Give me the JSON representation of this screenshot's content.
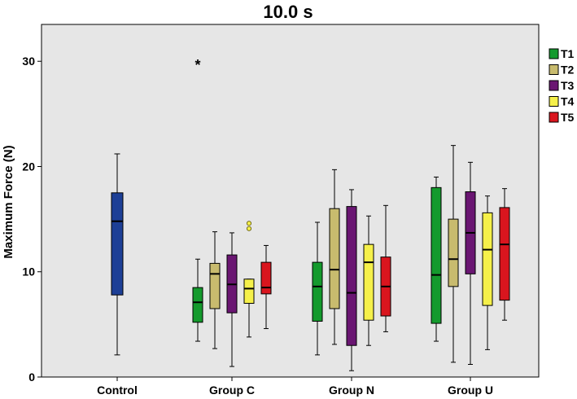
{
  "chart_data": {
    "type": "box",
    "title": "10.0 s",
    "xlabel": "",
    "ylabel": "Maximum Force (N)",
    "ylim": [
      0,
      33.5
    ],
    "yticks": [
      0,
      10,
      20,
      30
    ],
    "categories": [
      "Control",
      "Group C",
      "Group N",
      "Group U"
    ],
    "legend_position": "right",
    "series": [
      {
        "name": "Control",
        "legend": false,
        "color": "#1d3f96",
        "boxes": [
          {
            "group": "Control",
            "min": 2.1,
            "q1": 7.8,
            "median": 14.8,
            "q3": 17.5,
            "max": 21.2
          }
        ]
      },
      {
        "name": "T1",
        "legend": true,
        "color": "#149a2d",
        "boxes": [
          {
            "group": "Group C",
            "min": 3.4,
            "q1": 5.2,
            "median": 7.1,
            "q3": 8.5,
            "max": 11.2,
            "outliers": [],
            "extremes": [
              29.8
            ]
          },
          {
            "group": "Group N",
            "min": 2.1,
            "q1": 5.3,
            "median": 8.6,
            "q3": 10.9,
            "max": 14.7
          },
          {
            "group": "Group U",
            "min": 3.4,
            "q1": 5.1,
            "median": 9.7,
            "q3": 18.0,
            "max": 19.0
          }
        ]
      },
      {
        "name": "T2",
        "legend": true,
        "color": "#c8bb6e",
        "boxes": [
          {
            "group": "Group C",
            "min": 2.7,
            "q1": 6.5,
            "median": 9.8,
            "q3": 10.8,
            "max": 13.8
          },
          {
            "group": "Group N",
            "min": 3.1,
            "q1": 6.5,
            "median": 10.2,
            "q3": 16.0,
            "max": 19.7
          },
          {
            "group": "Group U",
            "min": 1.4,
            "q1": 8.6,
            "median": 11.2,
            "q3": 15.0,
            "max": 22.0
          }
        ]
      },
      {
        "name": "T3",
        "legend": true,
        "color": "#6a1672",
        "boxes": [
          {
            "group": "Group C",
            "min": 1.0,
            "q1": 6.1,
            "median": 8.8,
            "q3": 11.6,
            "max": 13.7
          },
          {
            "group": "Group N",
            "min": 0.6,
            "q1": 3.0,
            "median": 8.0,
            "q3": 16.2,
            "max": 17.8
          },
          {
            "group": "Group U",
            "min": 1.2,
            "q1": 9.8,
            "median": 13.7,
            "q3": 17.6,
            "max": 20.4
          }
        ]
      },
      {
        "name": "T4",
        "legend": true,
        "color": "#f5f04a",
        "boxes": [
          {
            "group": "Group C",
            "min": 3.8,
            "q1": 7.0,
            "median": 8.4,
            "q3": 9.3,
            "max": 9.3,
            "outliers": [
              14.1,
              14.6
            ]
          },
          {
            "group": "Group N",
            "min": 3.0,
            "q1": 5.4,
            "median": 10.9,
            "q3": 12.6,
            "max": 15.3
          },
          {
            "group": "Group U",
            "min": 2.6,
            "q1": 6.8,
            "median": 12.1,
            "q3": 15.6,
            "max": 17.2
          }
        ]
      },
      {
        "name": "T5",
        "legend": true,
        "color": "#d9151e",
        "boxes": [
          {
            "group": "Group C",
            "min": 4.6,
            "q1": 7.9,
            "median": 8.5,
            "q3": 10.9,
            "max": 12.5
          },
          {
            "group": "Group N",
            "min": 4.3,
            "q1": 5.8,
            "median": 8.6,
            "q3": 11.4,
            "max": 16.3
          },
          {
            "group": "Group U",
            "min": 5.4,
            "q1": 7.3,
            "median": 12.6,
            "q3": 16.1,
            "max": 17.9
          }
        ]
      }
    ],
    "extreme_marker": "*",
    "outlier_marker": "circle"
  }
}
